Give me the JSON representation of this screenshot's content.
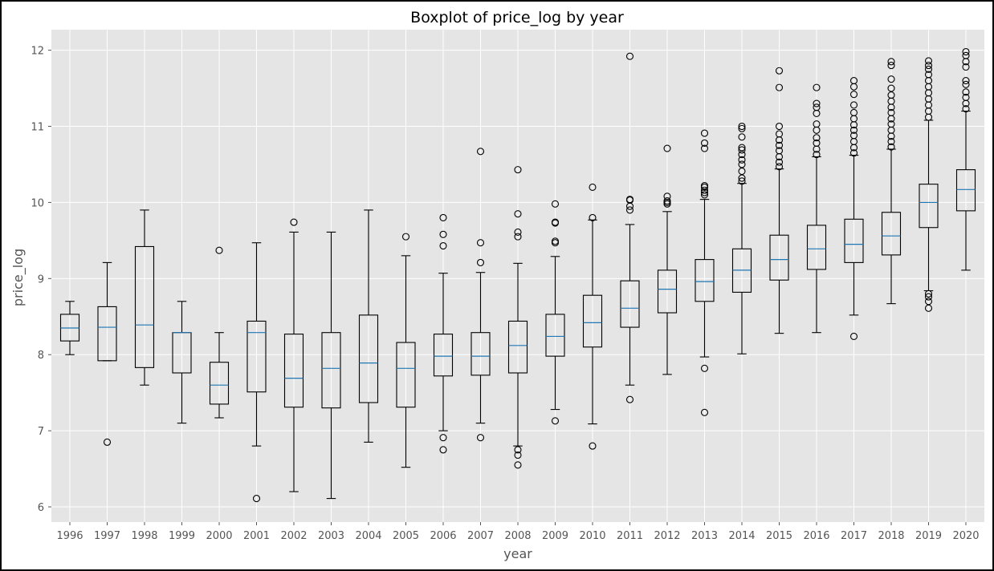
{
  "chart_data": {
    "type": "boxplot",
    "title": "Boxplot of price_log by year",
    "xlabel": "year",
    "ylabel": "price_log",
    "ylim": [
      5.8,
      12.27
    ],
    "yticks": [
      6,
      7,
      8,
      9,
      10,
      11,
      12
    ],
    "grid": true,
    "style": "ggplot",
    "categories": [
      "1996",
      "1997",
      "1998",
      "1999",
      "2000",
      "2001",
      "2002",
      "2003",
      "2004",
      "2005",
      "2006",
      "2007",
      "2008",
      "2009",
      "2010",
      "2011",
      "2012",
      "2013",
      "2014",
      "2015",
      "2016",
      "2017",
      "2018",
      "2019",
      "2020"
    ],
    "boxes": [
      {
        "year": "1996",
        "whislo": 8.0,
        "q1": 8.18,
        "med": 8.35,
        "q3": 8.53,
        "whishi": 8.7,
        "fliers": []
      },
      {
        "year": "1997",
        "whislo": 7.92,
        "q1": 7.92,
        "med": 8.36,
        "q3": 8.63,
        "whishi": 9.21,
        "fliers": [
          6.85
        ]
      },
      {
        "year": "1998",
        "whislo": 7.6,
        "q1": 7.83,
        "med": 8.39,
        "q3": 9.42,
        "whishi": 9.9,
        "fliers": []
      },
      {
        "year": "1999",
        "whislo": 7.1,
        "q1": 7.76,
        "med": 8.29,
        "q3": 8.29,
        "whishi": 8.7,
        "fliers": []
      },
      {
        "year": "2000",
        "whislo": 7.17,
        "q1": 7.35,
        "med": 7.6,
        "q3": 7.9,
        "whishi": 8.29,
        "fliers": [
          9.37
        ]
      },
      {
        "year": "2001",
        "whislo": 6.8,
        "q1": 7.51,
        "med": 8.29,
        "q3": 8.44,
        "whishi": 9.47,
        "fliers": [
          6.11
        ]
      },
      {
        "year": "2002",
        "whislo": 6.2,
        "q1": 7.31,
        "med": 7.69,
        "q3": 8.27,
        "whishi": 9.61,
        "fliers": [
          9.74
        ]
      },
      {
        "year": "2003",
        "whislo": 6.11,
        "q1": 7.3,
        "med": 7.82,
        "q3": 8.29,
        "whishi": 9.61,
        "fliers": []
      },
      {
        "year": "2004",
        "whislo": 6.85,
        "q1": 7.37,
        "med": 7.89,
        "q3": 8.52,
        "whishi": 9.9,
        "fliers": []
      },
      {
        "year": "2005",
        "whislo": 6.52,
        "q1": 7.31,
        "med": 7.82,
        "q3": 8.16,
        "whishi": 9.3,
        "fliers": [
          9.55
        ]
      },
      {
        "year": "2006",
        "whislo": 7.0,
        "q1": 7.72,
        "med": 7.98,
        "q3": 8.27,
        "whishi": 9.07,
        "fliers": [
          6.75,
          6.91,
          9.43,
          9.58,
          9.8
        ]
      },
      {
        "year": "2007",
        "whislo": 7.1,
        "q1": 7.73,
        "med": 7.98,
        "q3": 8.29,
        "whishi": 9.08,
        "fliers": [
          6.91,
          9.21,
          9.47,
          10.67
        ]
      },
      {
        "year": "2008",
        "whislo": 6.8,
        "q1": 7.76,
        "med": 8.12,
        "q3": 8.44,
        "whishi": 9.2,
        "fliers": [
          6.55,
          6.68,
          6.75,
          9.55,
          9.61,
          9.85,
          10.43
        ]
      },
      {
        "year": "2009",
        "whislo": 7.28,
        "q1": 7.98,
        "med": 8.24,
        "q3": 8.53,
        "whishi": 9.29,
        "fliers": [
          7.13,
          9.47,
          9.49,
          9.73,
          9.74,
          9.98
        ]
      },
      {
        "year": "2010",
        "whislo": 7.09,
        "q1": 8.1,
        "med": 8.42,
        "q3": 8.78,
        "whishi": 9.77,
        "fliers": [
          6.8,
          9.8,
          10.2
        ]
      },
      {
        "year": "2011",
        "whislo": 7.6,
        "q1": 8.36,
        "med": 8.61,
        "q3": 8.97,
        "whishi": 9.71,
        "fliers": [
          7.41,
          9.9,
          9.95,
          10.03,
          10.04,
          11.92
        ]
      },
      {
        "year": "2012",
        "whislo": 7.74,
        "q1": 8.55,
        "med": 8.86,
        "q3": 9.11,
        "whishi": 9.88,
        "fliers": [
          9.98,
          10.0,
          10.02,
          10.08,
          10.71
        ]
      },
      {
        "year": "2013",
        "whislo": 7.97,
        "q1": 8.7,
        "med": 8.96,
        "q3": 9.25,
        "whishi": 10.04,
        "fliers": [
          7.24,
          7.82,
          10.1,
          10.13,
          10.16,
          10.2,
          10.22,
          10.71,
          10.78,
          10.91
        ]
      },
      {
        "year": "2014",
        "whislo": 8.01,
        "q1": 8.82,
        "med": 9.11,
        "q3": 9.39,
        "whishi": 10.25,
        "fliers": [
          10.28,
          10.32,
          10.41,
          10.5,
          10.56,
          10.63,
          10.69,
          10.72,
          10.86,
          10.97,
          11.0
        ]
      },
      {
        "year": "2015",
        "whislo": 8.28,
        "q1": 8.98,
        "med": 9.25,
        "q3": 9.57,
        "whishi": 10.44,
        "fliers": [
          10.47,
          10.53,
          10.6,
          10.68,
          10.75,
          10.82,
          10.9,
          11.0,
          11.51,
          11.73
        ]
      },
      {
        "year": "2016",
        "whislo": 8.29,
        "q1": 9.12,
        "med": 9.39,
        "q3": 9.7,
        "whishi": 10.6,
        "fliers": [
          10.63,
          10.7,
          10.78,
          10.85,
          10.95,
          11.03,
          11.17,
          11.25,
          11.3,
          11.51
        ]
      },
      {
        "year": "2017",
        "whislo": 8.52,
        "q1": 9.21,
        "med": 9.45,
        "q3": 9.78,
        "whishi": 10.62,
        "fliers": [
          8.24,
          10.65,
          10.72,
          10.8,
          10.88,
          10.95,
          11.02,
          11.1,
          11.18,
          11.28,
          11.42,
          11.52,
          11.6
        ]
      },
      {
        "year": "2018",
        "whislo": 8.67,
        "q1": 9.31,
        "med": 9.56,
        "q3": 9.87,
        "whishi": 10.7,
        "fliers": [
          10.73,
          10.8,
          10.87,
          10.95,
          11.03,
          11.1,
          11.18,
          11.25,
          11.33,
          11.41,
          11.5,
          11.62,
          11.8,
          11.85
        ]
      },
      {
        "year": "2019",
        "whislo": 8.84,
        "q1": 9.67,
        "med": 10.0,
        "q3": 10.24,
        "whishi": 11.08,
        "fliers": [
          8.61,
          8.7,
          8.76,
          8.8,
          11.12,
          11.2,
          11.28,
          11.36,
          11.44,
          11.52,
          11.6,
          11.68,
          11.75,
          11.8,
          11.86
        ]
      },
      {
        "year": "2020",
        "whislo": 9.11,
        "q1": 9.89,
        "med": 10.17,
        "q3": 10.43,
        "whishi": 11.2,
        "fliers": [
          11.23,
          11.3,
          11.38,
          11.45,
          11.55,
          11.6,
          11.78,
          11.85,
          11.93,
          11.98
        ]
      }
    ],
    "colors": {
      "background": "#E5E5E5",
      "grid": "#FFFFFF",
      "box": "#000000",
      "median": "#1F77B4",
      "text": "#555555"
    }
  }
}
